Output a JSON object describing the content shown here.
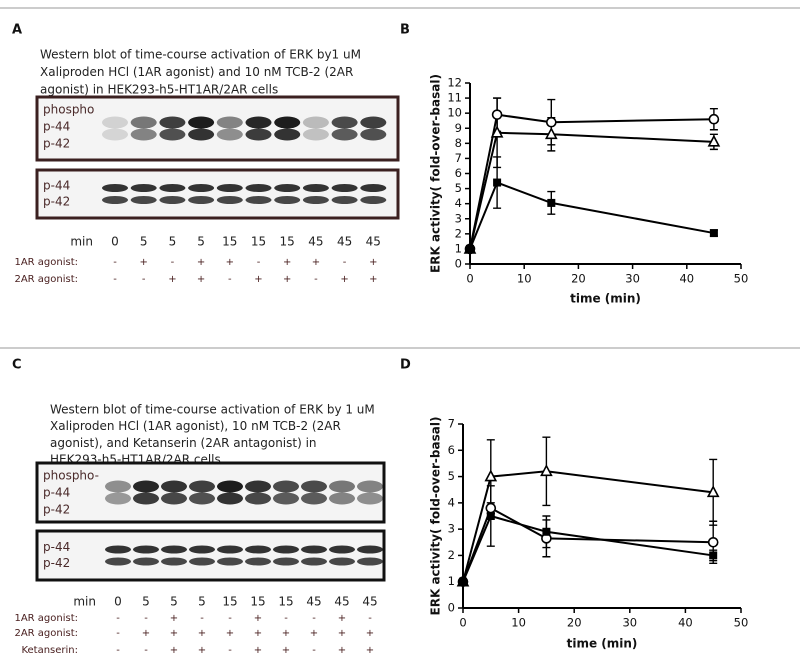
{
  "blots": [
    {
      "label": "A",
      "caption": [
        "Western blot of time-course activation of ERK by1 uM",
        "Xaliproden HCl (1AR agonist) and 10 nM TCB-2 (2AR",
        "agonist) in HEK293-h5-HT1AR/2AR cells"
      ],
      "upper_labels": [
        "phospho",
        "p-44",
        "p-42"
      ],
      "lower_labels": [
        "p-44",
        "p-42"
      ],
      "min_label": "min",
      "minutes": [
        0,
        5,
        5,
        5,
        15,
        15,
        15,
        45,
        45,
        45
      ],
      "treatments": [
        {
          "name": "1AR agonist:",
          "signs": [
            "-",
            "+",
            "-",
            "+",
            "+",
            "-",
            "+",
            "+",
            "-",
            "+"
          ]
        },
        {
          "name": "2AR agonist:",
          "signs": [
            "-",
            "-",
            "+",
            "+",
            "-",
            "+",
            "+",
            "-",
            "+",
            "+"
          ]
        }
      ]
    },
    {
      "label": "C",
      "caption": [
        "Western blot of time-course activation of ERK by 1 uM",
        "Xaliproden HCl (1AR agonist), 10 nM TCB-2 (2AR",
        "agonist), and Ketanserin (2AR antagonist) in",
        "HEK293-h5-HT1AR/2AR cells"
      ],
      "upper_labels": [
        "phospho-",
        "p-44",
        "p-42"
      ],
      "lower_labels": [
        "p-44",
        "p-42"
      ],
      "min_label": "min",
      "minutes": [
        0,
        5,
        5,
        5,
        15,
        15,
        15,
        45,
        45,
        45
      ],
      "treatments": [
        {
          "name": "1AR agonist:",
          "signs": [
            "-",
            "-",
            "+",
            "-",
            "-",
            "+",
            "-",
            "-",
            "+",
            "-"
          ]
        },
        {
          "name": "2AR agonist:",
          "signs": [
            "-",
            "+",
            "+",
            "+",
            "+",
            "+",
            "+",
            "+",
            "+",
            "+"
          ]
        },
        {
          "name": "Ketanserin:",
          "signs": [
            "-",
            "-",
            "+",
            "+",
            "-",
            "+",
            "+",
            "-",
            "+",
            "+"
          ]
        }
      ]
    }
  ],
  "chart_data": [
    {
      "type": "line",
      "label": "B",
      "xlabel": "time (min)",
      "ylabel": "ERK activity( fold-over-basal)",
      "x": [
        0,
        5,
        15,
        45
      ],
      "xlim": [
        0,
        50
      ],
      "xticks": [
        0,
        10,
        20,
        30,
        40,
        50
      ],
      "ylim": [
        0,
        12
      ],
      "yticks": [
        0,
        1,
        2,
        3,
        4,
        5,
        6,
        7,
        8,
        9,
        10,
        11,
        12
      ],
      "series": [
        {
          "marker": "circle",
          "color": "#000000",
          "values": [
            1,
            9.9,
            9.4,
            9.6
          ],
          "errors": [
            0,
            1.1,
            1.5,
            0.7
          ]
        },
        {
          "marker": "triangle",
          "color": "#000000",
          "values": [
            1,
            8.7,
            8.6,
            8.1
          ],
          "errors": [
            0,
            2.3,
            1.1,
            0.5
          ]
        },
        {
          "marker": "square",
          "color": "#000000",
          "values": [
            1,
            5.4,
            4.05,
            2.05
          ],
          "errors": [
            0,
            1.7,
            0.75,
            0.2
          ]
        }
      ]
    },
    {
      "type": "line",
      "label": "D",
      "xlabel": "time (min)",
      "ylabel": "ERK activity( fold-over-basal)",
      "x": [
        0,
        5,
        15,
        45
      ],
      "xlim": [
        0,
        50
      ],
      "xticks": [
        0,
        10,
        20,
        30,
        40,
        50
      ],
      "ylim": [
        0,
        7
      ],
      "yticks": [
        0,
        1,
        2,
        3,
        4,
        5,
        6,
        7
      ],
      "series": [
        {
          "marker": "triangle",
          "color": "#000000",
          "values": [
            1,
            5.0,
            5.2,
            4.4
          ],
          "errors": [
            0,
            1.4,
            1.3,
            1.25
          ]
        },
        {
          "marker": "circle",
          "color": "#000000",
          "values": [
            1,
            3.8,
            2.65,
            2.5
          ],
          "errors": [
            0,
            0.2,
            0.7,
            0.8
          ]
        },
        {
          "marker": "square",
          "color": "#000000",
          "values": [
            1,
            3.5,
            2.9,
            2.0
          ],
          "errors": [
            0,
            1.15,
            0.6,
            0.2
          ]
        }
      ]
    }
  ]
}
